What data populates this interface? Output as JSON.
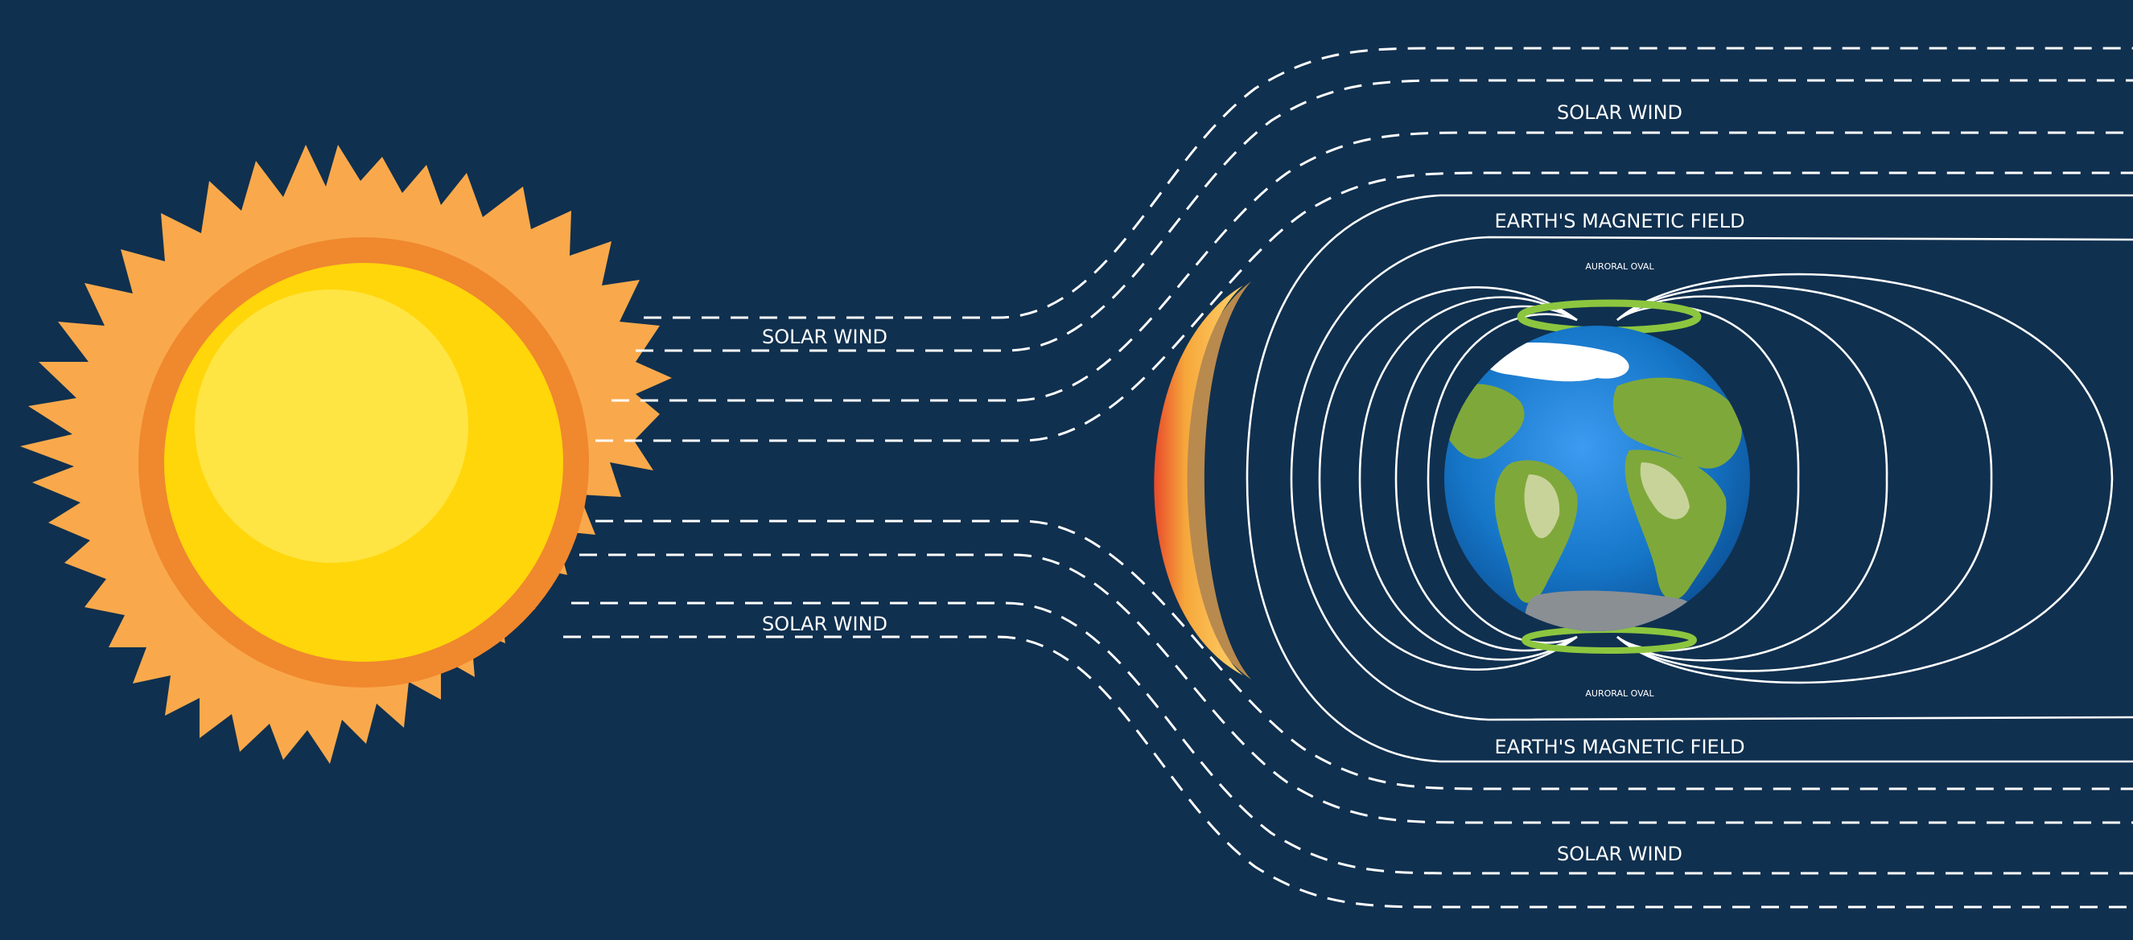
{
  "labels": {
    "solar_wind_upper_right": "SOLAR WIND",
    "solar_wind_left_top": "SOLAR WIND",
    "solar_wind_left_bottom": "SOLAR WIND",
    "solar_wind_lower_right": "SOLAR WIND",
    "magnetic_field_top": "EARTH'S MAGNETIC FIELD",
    "magnetic_field_bottom": "EARTH'S MAGNETIC FIELD",
    "auroral_oval_top": "AURORAL OVAL",
    "auroral_oval_bottom": "AURORAL OVAL"
  },
  "colors": {
    "background": "#10304f",
    "sun_rays": "#f9a94b",
    "sun_ring": "#f0882e",
    "sun_core": "#ffd60a",
    "sun_highlight": "#ffe84d",
    "bow_shock": "#f6a73b",
    "ocean": "#1677c9",
    "land": "#7fa83a",
    "auroral_oval": "#8cc63f",
    "field_lines": "#ffffff"
  }
}
